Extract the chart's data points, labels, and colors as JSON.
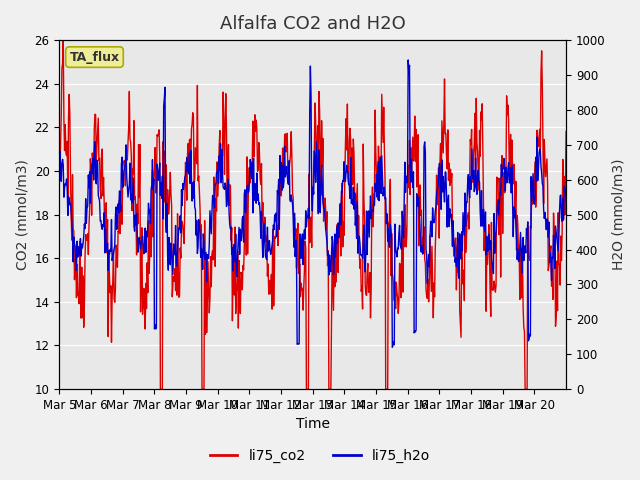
{
  "title": "Alfalfa CO2 and H2O",
  "xlabel": "Time",
  "ylabel_left": "CO2 (mmol/m3)",
  "ylabel_right": "H2O (mmol/m3)",
  "ylim_left": [
    10,
    26
  ],
  "ylim_right": [
    0,
    1000
  ],
  "yticks_left": [
    10,
    12,
    14,
    16,
    18,
    20,
    22,
    24,
    26
  ],
  "yticks_right": [
    0,
    100,
    200,
    300,
    400,
    500,
    600,
    700,
    800,
    900,
    1000
  ],
  "xtick_labels": [
    "Mar 5",
    "Mar 6",
    "Mar 7",
    "Mar 8",
    "Mar 9",
    "Mar 10",
    "Mar 11",
    "Mar 12",
    "Mar 13",
    "Mar 14",
    "Mar 15",
    "Mar 16",
    "Mar 17",
    "Mar 18",
    "Mar 19",
    "Mar 20"
  ],
  "xtick_positions": [
    0,
    1,
    2,
    3,
    4,
    5,
    6,
    7,
    8,
    9,
    10,
    11,
    12,
    13,
    14,
    15
  ],
  "color_co2": "#dd0000",
  "color_h2o": "#0000cc",
  "legend_label_co2": "li75_co2",
  "legend_label_h2o": "li75_h2o",
  "annotation_text": "TA_flux",
  "annotation_bg": "#eeee99",
  "annotation_border": "#aaaa00",
  "bg_color": "#e8e8e8",
  "fig_bg": "#f0f0f0",
  "title_fontsize": 13,
  "axis_label_fontsize": 10,
  "tick_fontsize": 8.5,
  "legend_fontsize": 10,
  "n_days": 16,
  "pts_per_day": 48
}
